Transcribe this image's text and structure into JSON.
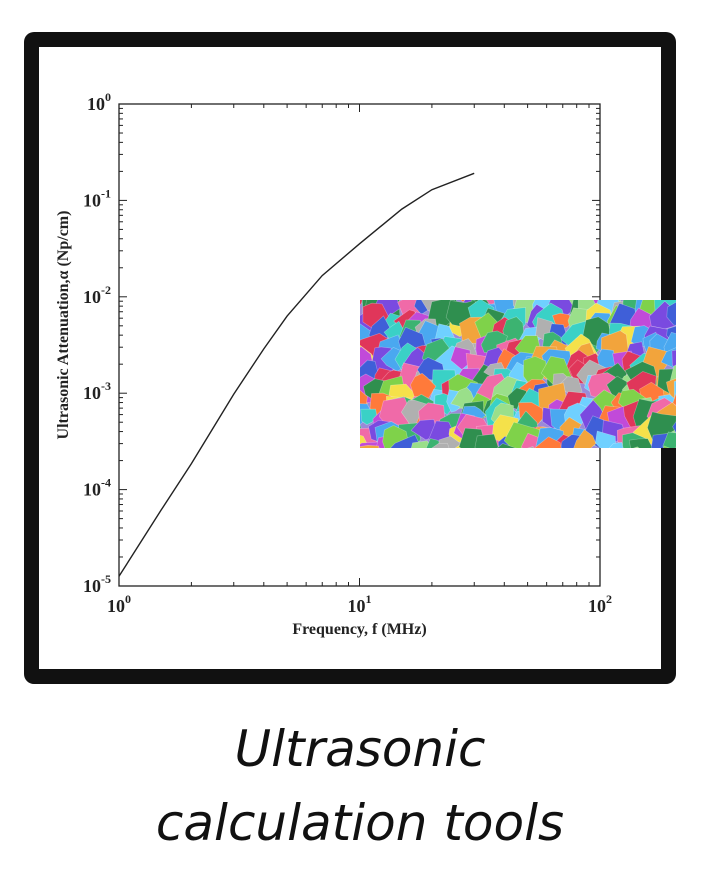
{
  "caption": {
    "line1": "Ultrasonic",
    "line2": "calculation tools"
  },
  "chart_data": {
    "type": "line",
    "xscale": "log",
    "yscale": "log",
    "xlabel": "Frequency, f (MHz)",
    "ylabel": "Ultrasonic Attenuation,α (Np/cm)",
    "xlim": [
      1,
      100
    ],
    "ylim": [
      1e-05,
      1
    ],
    "x_ticks": [
      {
        "base": "10",
        "exp": "0",
        "value": 1
      },
      {
        "base": "10",
        "exp": "1",
        "value": 10
      },
      {
        "base": "10",
        "exp": "2",
        "value": 100
      }
    ],
    "y_ticks": [
      {
        "base": "10",
        "exp": "0",
        "value": 1
      },
      {
        "base": "10",
        "exp": "-1",
        "value": 0.1
      },
      {
        "base": "10",
        "exp": "-2",
        "value": 0.01
      },
      {
        "base": "10",
        "exp": "-3",
        "value": 0.001
      },
      {
        "base": "10",
        "exp": "-4",
        "value": 0.0001
      },
      {
        "base": "10",
        "exp": "-5",
        "value": 1e-05
      }
    ],
    "grid": false,
    "line_color": "#222222",
    "series": [
      {
        "x": [
          1,
          1.5,
          2,
          3,
          4,
          5,
          7,
          10,
          15,
          20,
          30
        ],
        "y": [
          1.26e-05,
          6.17e-05,
          0.000186,
          0.000977,
          0.00288,
          0.00631,
          0.0166,
          0.0355,
          0.0813,
          0.129,
          0.191
        ]
      }
    ]
  },
  "inset": {
    "name": "grain-microstructure-map",
    "palette": [
      "#e0365a",
      "#f2a43c",
      "#f5e14a",
      "#7fd24a",
      "#3cb371",
      "#3ad1c6",
      "#4aa8f0",
      "#3f5fd8",
      "#7a4ae0",
      "#c14ad9",
      "#f06aa8",
      "#9adf8a",
      "#b0b0b0",
      "#2f8f4f",
      "#ff7a3a",
      "#6fd0ff"
    ]
  }
}
